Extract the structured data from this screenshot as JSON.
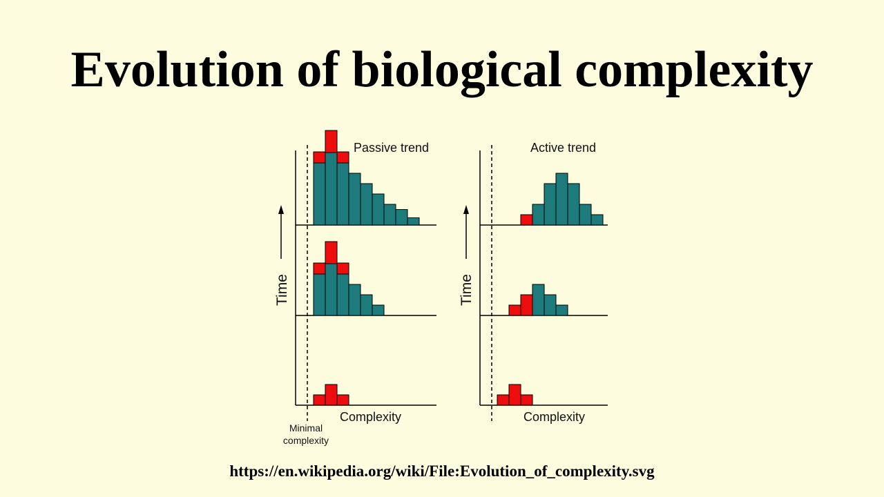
{
  "title": "Evolution of biological complexity",
  "source_url": "https://en.wikipedia.org/wiki/File:Evolution_of_complexity.svg",
  "colors": {
    "background": "#fdfcde",
    "red": "#ee0d0d",
    "teal": "#1e7b7b",
    "stroke": "#000000"
  },
  "diagram": {
    "time_label": "Time",
    "complexity_label": "Complexity",
    "minimal_complexity_label": [
      "Minimal",
      "complexity"
    ],
    "panels": [
      {
        "title": "Passive trend",
        "rows": [
          {
            "bars": [
              {
                "v": 1,
                "c": "red"
              },
              {
                "v": 2,
                "c": "red"
              },
              {
                "v": 1,
                "c": "red"
              }
            ]
          },
          {
            "bars": [
              {
                "v": 4,
                "c": "teal",
                "red_top": 1
              },
              {
                "v": 5,
                "c": "teal",
                "red_top": 2
              },
              {
                "v": 4,
                "c": "teal",
                "red_top": 1
              },
              {
                "v": 3,
                "c": "teal"
              },
              {
                "v": 2,
                "c": "teal"
              },
              {
                "v": 1,
                "c": "teal"
              }
            ]
          },
          {
            "bars": [
              {
                "v": 6,
                "c": "teal",
                "red_top": 1
              },
              {
                "v": 7,
                "c": "teal",
                "red_top": 2
              },
              {
                "v": 6,
                "c": "teal",
                "red_top": 1
              },
              {
                "v": 5,
                "c": "teal"
              },
              {
                "v": 4,
                "c": "teal"
              },
              {
                "v": 3,
                "c": "teal"
              },
              {
                "v": 2,
                "c": "teal"
              },
              {
                "v": 1.5,
                "c": "teal"
              },
              {
                "v": 0.7,
                "c": "teal"
              }
            ]
          }
        ]
      },
      {
        "title": "Active trend",
        "rows": [
          {
            "bars": [
              {
                "v": 1,
                "c": "red"
              },
              {
                "v": 2,
                "c": "red"
              },
              {
                "v": 1,
                "c": "red"
              }
            ]
          },
          {
            "bars": [
              {
                "v": 1,
                "c": "red"
              },
              {
                "v": 2,
                "c": "red"
              },
              {
                "v": 3,
                "c": "teal"
              },
              {
                "v": 2,
                "c": "teal"
              },
              {
                "v": 1,
                "c": "teal"
              }
            ]
          },
          {
            "bars": [
              {
                "v": 1,
                "c": "red"
              },
              {
                "v": 2,
                "c": "teal"
              },
              {
                "v": 4,
                "c": "teal"
              },
              {
                "v": 5,
                "c": "teal"
              },
              {
                "v": 4,
                "c": "teal"
              },
              {
                "v": 2,
                "c": "teal"
              },
              {
                "v": 1,
                "c": "teal"
              }
            ]
          }
        ]
      }
    ]
  }
}
